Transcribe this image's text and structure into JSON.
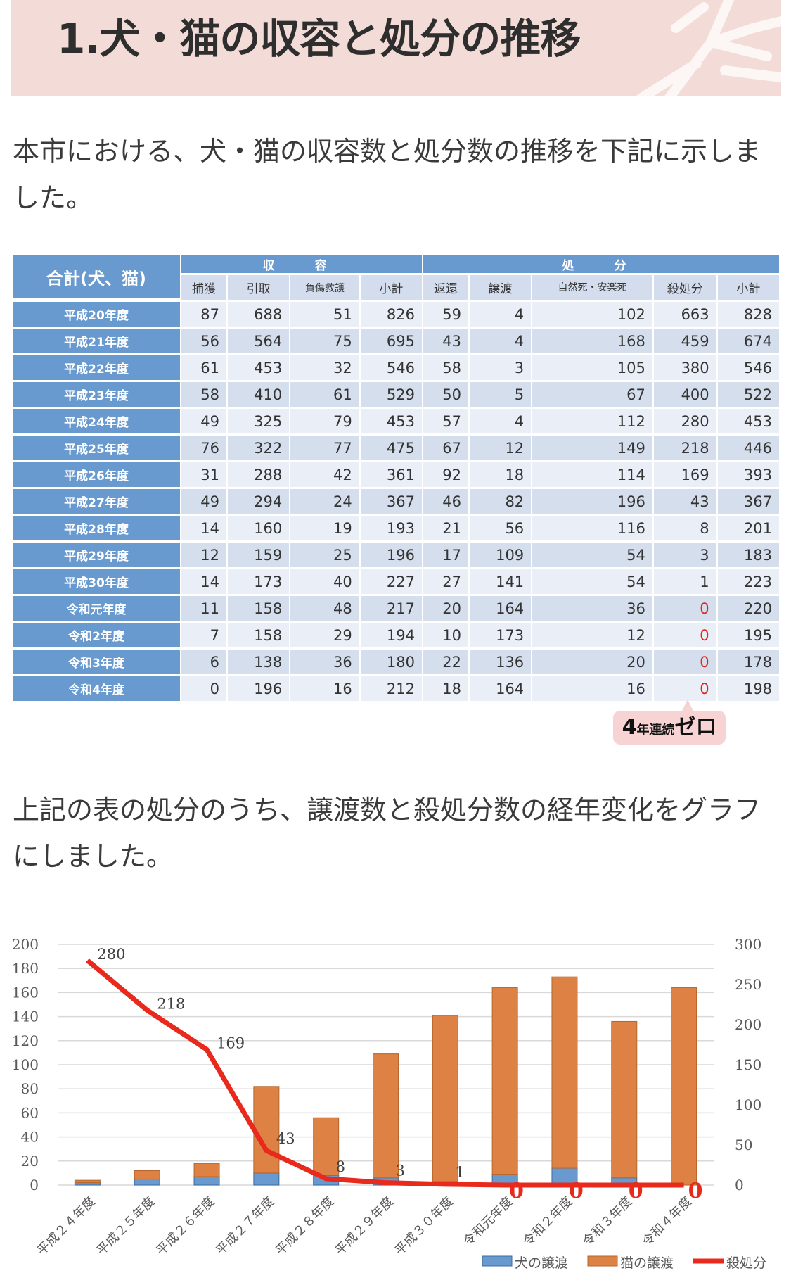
{
  "header": {
    "title": "1.犬・猫の収容と処分の推移"
  },
  "intro_text": "本市における、犬・猫の収容数と処分数の推移を下記に示しました。",
  "table": {
    "corner_label": "合計(犬、猫)",
    "group_intake": "収　容",
    "group_disposal": "処　分",
    "columns": [
      "捕獲",
      "引取",
      "負傷救護",
      "小計",
      "返還",
      "譲渡",
      "自然死・安楽死",
      "殺処分",
      "小計"
    ],
    "rows": [
      {
        "label": "平成20年度",
        "values": [
          "87",
          "688",
          "51",
          "826",
          "59",
          "4",
          "102",
          "663",
          "828"
        ]
      },
      {
        "label": "平成21年度",
        "values": [
          "56",
          "564",
          "75",
          "695",
          "43",
          "4",
          "168",
          "459",
          "674"
        ]
      },
      {
        "label": "平成22年度",
        "values": [
          "61",
          "453",
          "32",
          "546",
          "58",
          "3",
          "105",
          "380",
          "546"
        ]
      },
      {
        "label": "平成23年度",
        "values": [
          "58",
          "410",
          "61",
          "529",
          "50",
          "5",
          "67",
          "400",
          "522"
        ]
      },
      {
        "label": "平成24年度",
        "values": [
          "49",
          "325",
          "79",
          "453",
          "57",
          "4",
          "112",
          "280",
          "453"
        ]
      },
      {
        "label": "平成25年度",
        "values": [
          "76",
          "322",
          "77",
          "475",
          "67",
          "12",
          "149",
          "218",
          "446"
        ]
      },
      {
        "label": "平成26年度",
        "values": [
          "31",
          "288",
          "42",
          "361",
          "92",
          "18",
          "114",
          "169",
          "393"
        ]
      },
      {
        "label": "平成27年度",
        "values": [
          "49",
          "294",
          "24",
          "367",
          "46",
          "82",
          "196",
          "43",
          "367"
        ]
      },
      {
        "label": "平成28年度",
        "values": [
          "14",
          "160",
          "19",
          "193",
          "21",
          "56",
          "116",
          "8",
          "201"
        ]
      },
      {
        "label": "平成29年度",
        "values": [
          "12",
          "159",
          "25",
          "196",
          "17",
          "109",
          "54",
          "3",
          "183"
        ]
      },
      {
        "label": "平成30年度",
        "values": [
          "14",
          "173",
          "40",
          "227",
          "27",
          "141",
          "54",
          "1",
          "223"
        ]
      },
      {
        "label": "令和元年度",
        "values": [
          "11",
          "158",
          "48",
          "217",
          "20",
          "164",
          "36",
          "0",
          "220"
        ]
      },
      {
        "label": "令和2年度",
        "values": [
          "7",
          "158",
          "29",
          "194",
          "10",
          "173",
          "12",
          "0",
          "195"
        ]
      },
      {
        "label": "令和3年度",
        "values": [
          "6",
          "138",
          "36",
          "180",
          "22",
          "136",
          "20",
          "0",
          "178"
        ]
      },
      {
        "label": "令和4年度",
        "values": [
          "0",
          "196",
          "16",
          "212",
          "18",
          "164",
          "16",
          "0",
          "198"
        ]
      }
    ]
  },
  "callout": {
    "number": "4",
    "middle": "年連続",
    "end": "ゼロ"
  },
  "chart_text": "上記の表の処分のうち、譲渡数と殺処分数の経年変化をグラフにしました。",
  "colors": {
    "table_header": "#6899cf",
    "row_even": "#e9eef7",
    "row_odd": "#d4deed",
    "dog_bar": "#6899cf",
    "cat_bar": "#dd8244",
    "kill_line": "#e8291c"
  },
  "chart_data": {
    "type": "bar",
    "title": "",
    "categories": [
      "平成２４年度",
      "平成２５年度",
      "平成２６年度",
      "平成２７年度",
      "平成２８年度",
      "平成２９年度",
      "平成３０年度",
      "令和元年度",
      "令和２年度",
      "令和３年度",
      "令和４年度"
    ],
    "series": [
      {
        "name": "犬の譲渡",
        "type": "stacked-bar",
        "axis": "left",
        "values": [
          2,
          5,
          7,
          10,
          8,
          6,
          3,
          9,
          14,
          6,
          0
        ]
      },
      {
        "name": "猫の譲渡",
        "type": "stacked-bar",
        "axis": "left",
        "values": [
          2,
          7,
          11,
          72,
          48,
          103,
          138,
          155,
          159,
          130,
          164
        ]
      },
      {
        "name": "殺処分",
        "type": "line",
        "axis": "right",
        "values": [
          280,
          218,
          169,
          43,
          8,
          3,
          1,
          0,
          0,
          0,
          0
        ],
        "labels": [
          "280",
          "218",
          "169",
          "43",
          "8",
          "3",
          "1",
          "0",
          "0",
          "0",
          "0"
        ]
      }
    ],
    "y_left": {
      "ticks": [
        0,
        20,
        40,
        60,
        80,
        100,
        120,
        140,
        160,
        180,
        200
      ],
      "range": [
        0,
        200
      ]
    },
    "y_right": {
      "ticks": [
        0,
        50,
        100,
        150,
        200,
        250,
        300
      ],
      "range": [
        0,
        300
      ]
    },
    "xlabel": "",
    "ylabel": "",
    "grid": true,
    "legend_position": "bottom",
    "legend": [
      "犬の譲渡",
      "猫の譲渡",
      "殺処分"
    ]
  }
}
